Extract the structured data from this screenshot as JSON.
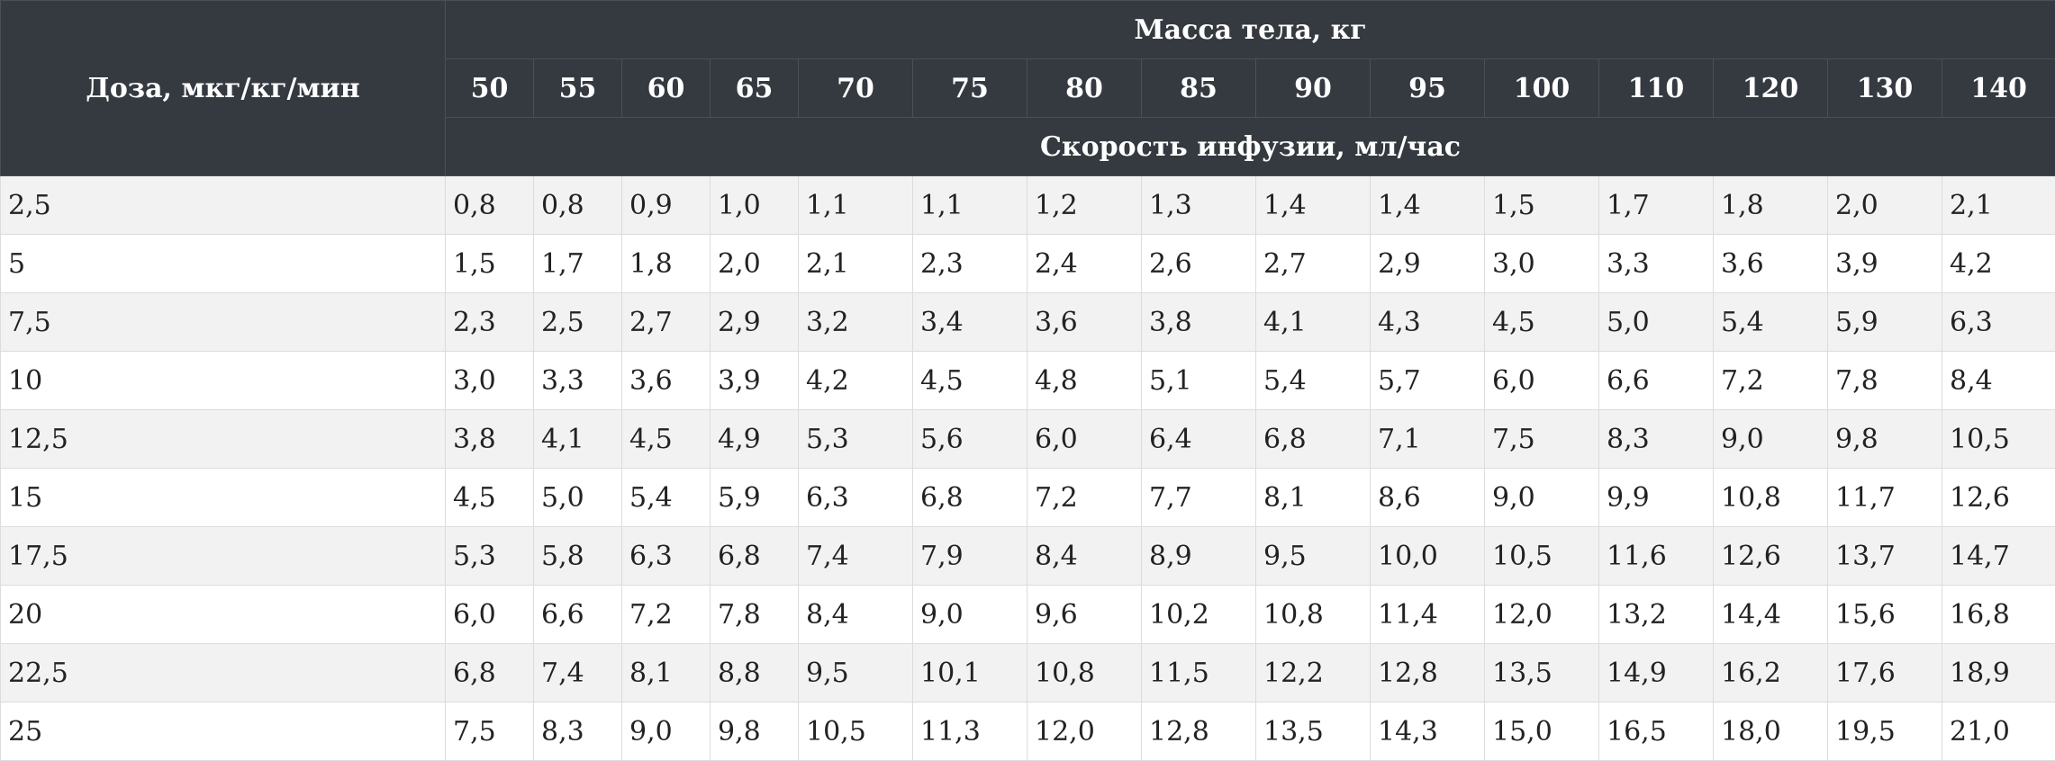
{
  "table": {
    "dose_header": "Доза, мкг/кг/мин",
    "mass_header": "Масса тела, кг",
    "rate_header": "Скорость инфузии, мл/час",
    "masses": [
      "50",
      "55",
      "60",
      "65",
      "70",
      "75",
      "80",
      "85",
      "90",
      "95",
      "100",
      "110",
      "120",
      "130",
      "140"
    ],
    "rows": [
      {
        "dose": "2,5",
        "values": [
          "0,8",
          "0,8",
          "0,9",
          "1,0",
          "1,1",
          "1,1",
          "1,2",
          "1,3",
          "1,4",
          "1,4",
          "1,5",
          "1,7",
          "1,8",
          "2,0",
          "2,1"
        ]
      },
      {
        "dose": "5",
        "values": [
          "1,5",
          "1,7",
          "1,8",
          "2,0",
          "2,1",
          "2,3",
          "2,4",
          "2,6",
          "2,7",
          "2,9",
          "3,0",
          "3,3",
          "3,6",
          "3,9",
          "4,2"
        ]
      },
      {
        "dose": "7,5",
        "values": [
          "2,3",
          "2,5",
          "2,7",
          "2,9",
          "3,2",
          "3,4",
          "3,6",
          "3,8",
          "4,1",
          "4,3",
          "4,5",
          "5,0",
          "5,4",
          "5,9",
          "6,3"
        ]
      },
      {
        "dose": "10",
        "values": [
          "3,0",
          "3,3",
          "3,6",
          "3,9",
          "4,2",
          "4,5",
          "4,8",
          "5,1",
          "5,4",
          "5,7",
          "6,0",
          "6,6",
          "7,2",
          "7,8",
          "8,4"
        ]
      },
      {
        "dose": "12,5",
        "values": [
          "3,8",
          "4,1",
          "4,5",
          "4,9",
          "5,3",
          "5,6",
          "6,0",
          "6,4",
          "6,8",
          "7,1",
          "7,5",
          "8,3",
          "9,0",
          "9,8",
          "10,5"
        ]
      },
      {
        "dose": "15",
        "values": [
          "4,5",
          "5,0",
          "5,4",
          "5,9",
          "6,3",
          "6,8",
          "7,2",
          "7,7",
          "8,1",
          "8,6",
          "9,0",
          "9,9",
          "10,8",
          "11,7",
          "12,6"
        ]
      },
      {
        "dose": "17,5",
        "values": [
          "5,3",
          "5,8",
          "6,3",
          "6,8",
          "7,4",
          "7,9",
          "8,4",
          "8,9",
          "9,5",
          "10,0",
          "10,5",
          "11,6",
          "12,6",
          "13,7",
          "14,7"
        ]
      },
      {
        "dose": "20",
        "values": [
          "6,0",
          "6,6",
          "7,2",
          "7,8",
          "8,4",
          "9,0",
          "9,6",
          "10,2",
          "10,8",
          "11,4",
          "12,0",
          "13,2",
          "14,4",
          "15,6",
          "16,8"
        ]
      },
      {
        "dose": "22,5",
        "values": [
          "6,8",
          "7,4",
          "8,1",
          "8,8",
          "9,5",
          "10,1",
          "10,8",
          "11,5",
          "12,2",
          "12,8",
          "13,5",
          "14,9",
          "16,2",
          "17,6",
          "18,9"
        ]
      },
      {
        "dose": "25",
        "values": [
          "7,5",
          "8,3",
          "9,0",
          "9,8",
          "10,5",
          "11,3",
          "12,0",
          "12,8",
          "13,5",
          "14,3",
          "15,0",
          "16,5",
          "18,0",
          "19,5",
          "21,0"
        ]
      }
    ]
  }
}
